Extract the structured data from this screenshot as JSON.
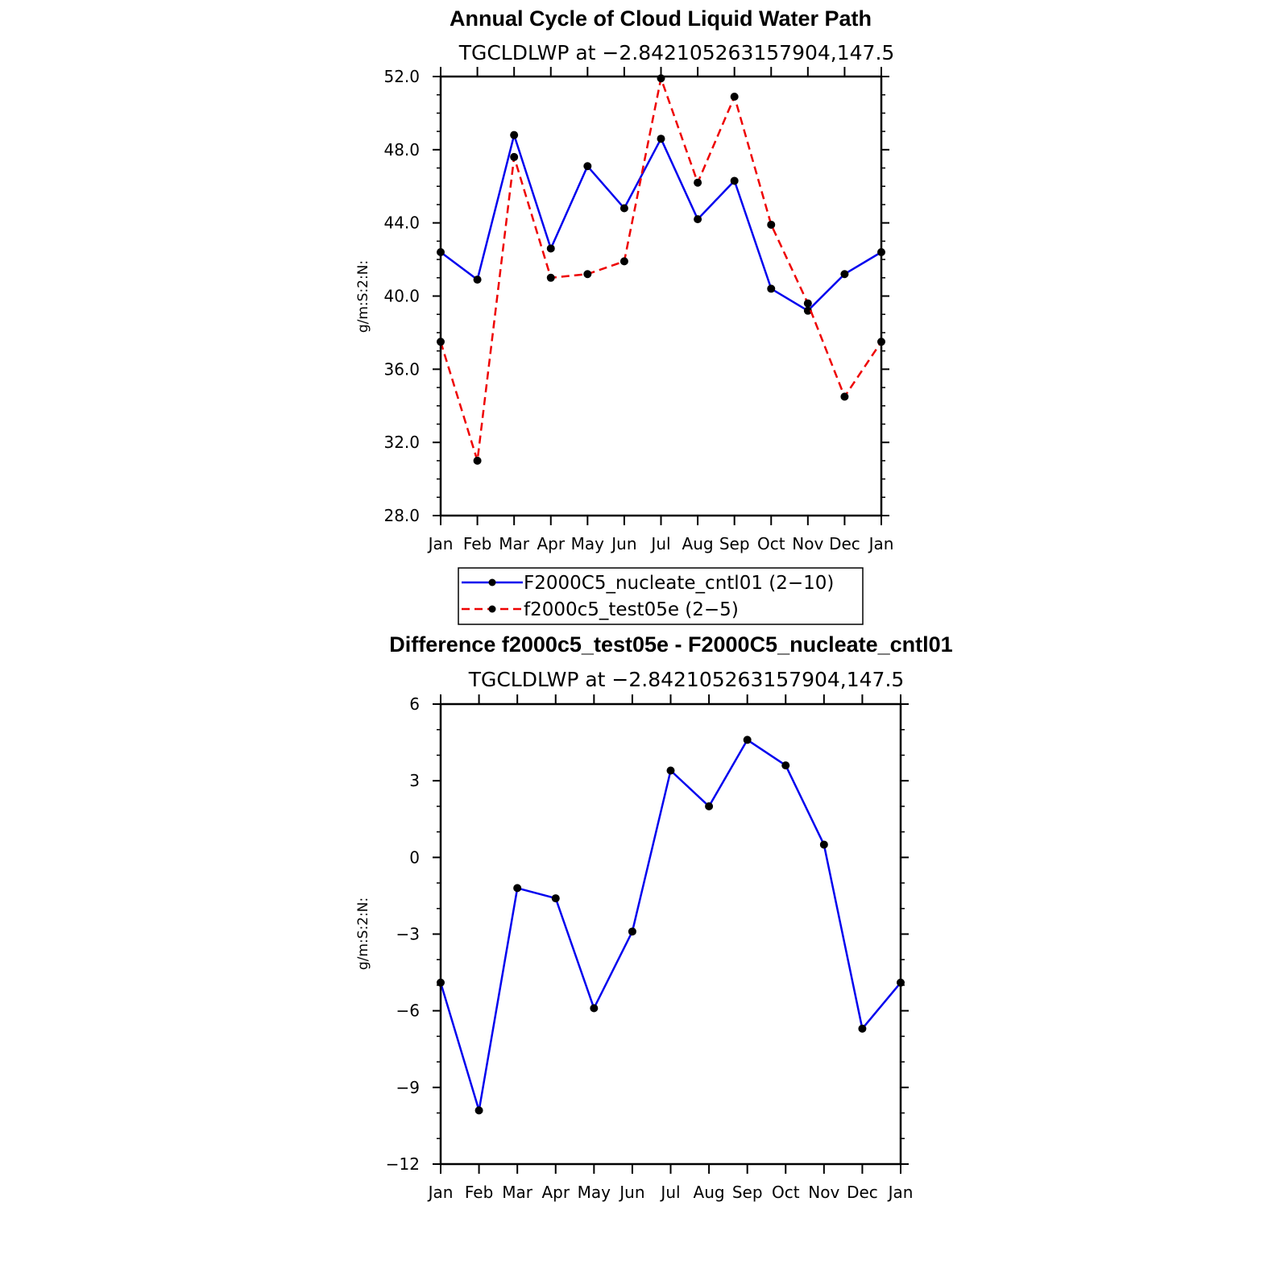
{
  "colors": {
    "series_blue": "#0000ee",
    "series_red": "#ee0000",
    "marker": "#000000",
    "axis": "#000000"
  },
  "chart_data": [
    {
      "type": "line",
      "title": "Annual Cycle of Cloud Liquid Water Path",
      "subtitle": "TGCLDLWP  at  −2.842105263157904,147.5",
      "ylabel": "g/m:S:2:N:",
      "xlabel": "",
      "categories": [
        "Jan",
        "Feb",
        "Mar",
        "Apr",
        "May",
        "Jun",
        "Jul",
        "Aug",
        "Sep",
        "Oct",
        "Nov",
        "Dec",
        "Jan"
      ],
      "ylim": [
        28.0,
        52.0
      ],
      "yticks": [
        "28.0",
        "32.0",
        "36.0",
        "40.0",
        "44.0",
        "48.0",
        "52.0"
      ],
      "series": [
        {
          "name": "F2000C5_nucleate_cntl01 (2−10)",
          "style": "solid",
          "color": "#0000ee",
          "values": [
            42.4,
            40.9,
            48.8,
            42.6,
            47.1,
            44.8,
            48.6,
            44.2,
            46.3,
            40.4,
            39.2,
            41.2,
            42.4
          ]
        },
        {
          "name": "f2000c5_test05e (2−5)",
          "style": "dashed",
          "color": "#ee0000",
          "values": [
            37.5,
            31.0,
            47.6,
            41.0,
            41.2,
            41.9,
            51.9,
            46.2,
            50.9,
            43.9,
            39.6,
            34.5,
            37.5
          ]
        }
      ],
      "legend": {
        "placement": "below",
        "entries": [
          "F2000C5_nucleate_cntl01 (2−10)",
          "f2000c5_test05e (2−5)"
        ]
      }
    },
    {
      "type": "line",
      "title": "Difference f2000c5_test05e - F2000C5_nucleate_cntl01",
      "subtitle": "TGCLDLWP  at  −2.842105263157904,147.5",
      "ylabel": "g/m:S:2:N:",
      "xlabel": "",
      "categories": [
        "Jan",
        "Feb",
        "Mar",
        "Apr",
        "May",
        "Jun",
        "Jul",
        "Aug",
        "Sep",
        "Oct",
        "Nov",
        "Dec",
        "Jan"
      ],
      "ylim": [
        -12,
        6
      ],
      "yticks": [
        "−12",
        "−9",
        "−6",
        "−3",
        "0",
        "3",
        "6"
      ],
      "series": [
        {
          "style": "solid",
          "color": "#0000ee",
          "values": [
            -4.9,
            -9.9,
            -1.2,
            -1.6,
            -5.9,
            -2.9,
            3.4,
            2.0,
            4.6,
            3.6,
            0.5,
            -6.7,
            -4.9
          ]
        }
      ]
    }
  ]
}
